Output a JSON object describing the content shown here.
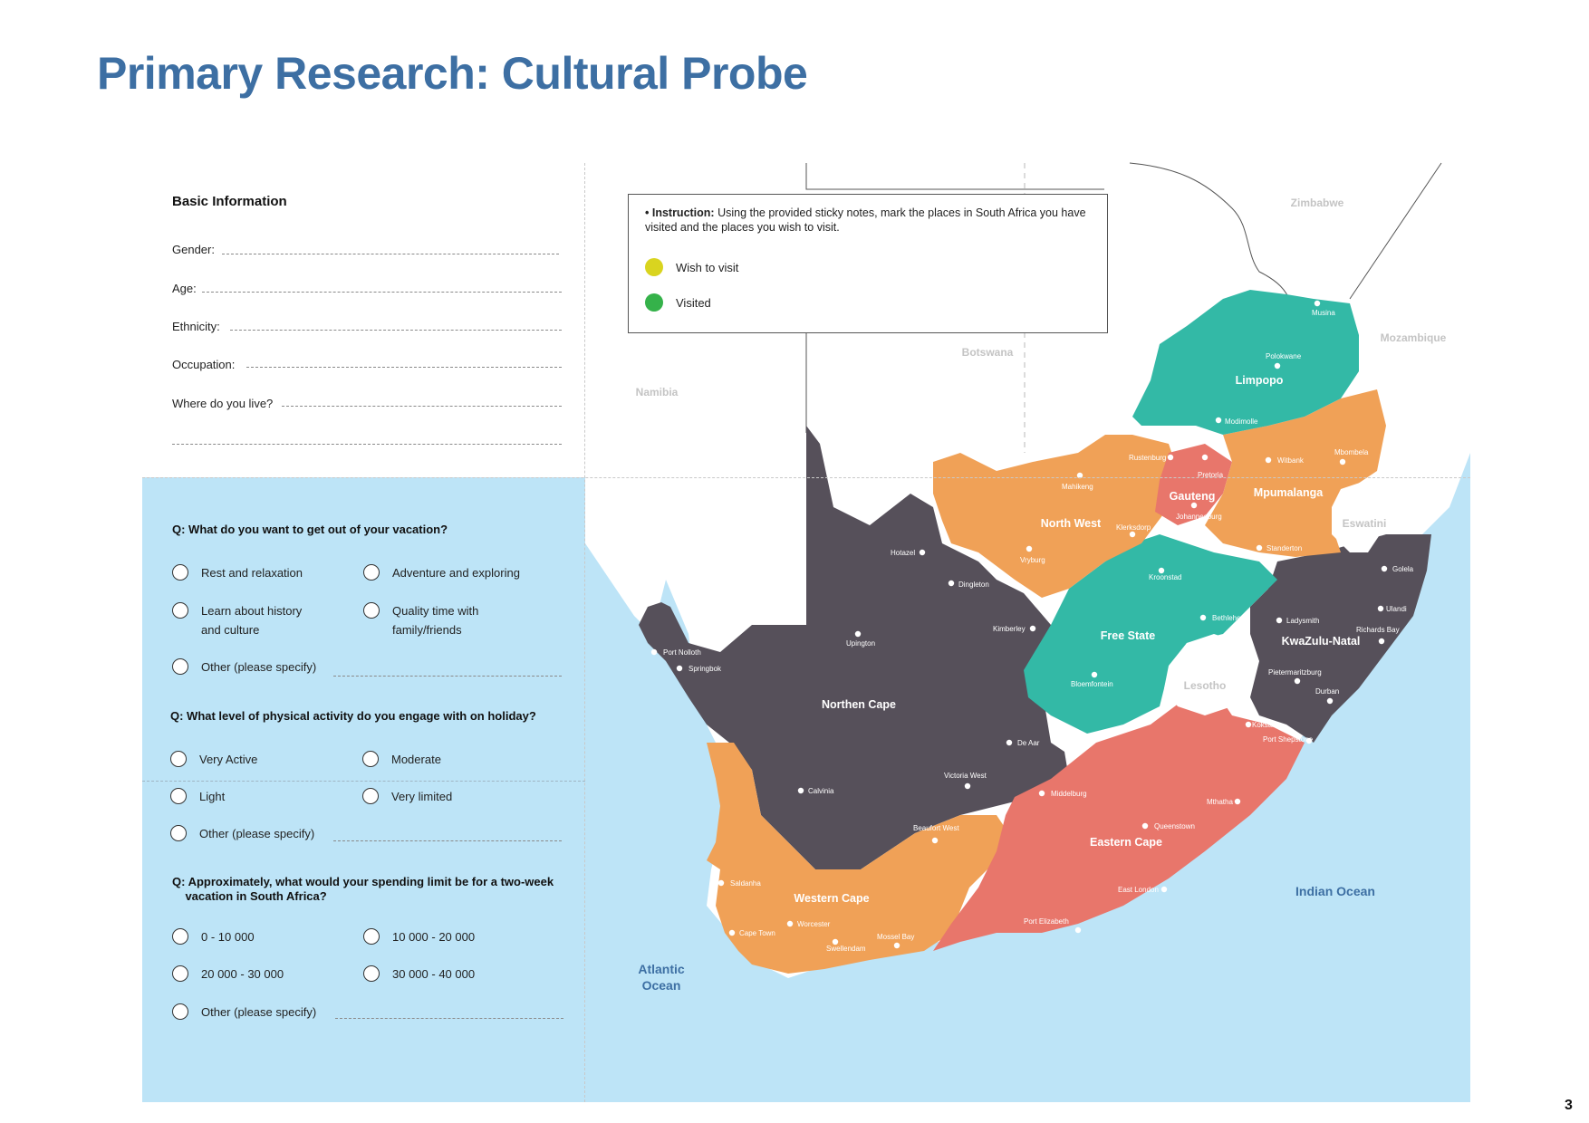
{
  "page_title": "Primary Research: Cultural Probe",
  "page_number": "3",
  "basic_info": {
    "heading": "Basic Information",
    "fields": [
      "Gender:",
      "Age:",
      "Ethnicity:",
      "Occupation:",
      "Where do you live?"
    ]
  },
  "questions": [
    {
      "text": "Q: What do you want to get out of your vacation?",
      "options": [
        "Rest and relaxation",
        "Adventure and exploring",
        "Learn about history\nand culture",
        "Quality time with\nfamily/friends",
        "Other (please specify)"
      ]
    },
    {
      "text": "Q: What level of physical activity do you engage with on holiday?",
      "options": [
        "Very Active",
        "Moderate",
        "Light",
        "Very limited",
        "Other (please specify)"
      ]
    },
    {
      "text": "Q: Approximately, what would your spending limit be for a two-week\n    vacation in South Africa?",
      "options": [
        "0 - 10 000",
        "10 000 - 20 000",
        "20 000 - 30 000",
        "30 000 - 40 000",
        "Other (please specify)"
      ]
    }
  ],
  "instruction": {
    "label": "• Instruction:",
    "text": " Using the provided sticky notes, mark the places in South Africa you have visited and the places you wish to visit.",
    "legend": [
      {
        "label": "Wish to visit",
        "color": "#d9d41f"
      },
      {
        "label": "Visited",
        "color": "#35b24a"
      }
    ]
  },
  "map": {
    "countries": [
      "Zimbabwe",
      "Mozambique",
      "Botswana",
      "Namibia",
      "Eswatini",
      "Lesotho"
    ],
    "oceans": [
      "Atlantic\nOcean",
      "Indian Ocean"
    ],
    "provinces": [
      {
        "name": "Limpopo",
        "color": "#33b9a6"
      },
      {
        "name": "Mpumalanga",
        "color": "#f0a157"
      },
      {
        "name": "Gauteng",
        "color": "#e8766b"
      },
      {
        "name": "North West",
        "color": "#f0a157"
      },
      {
        "name": "Free State",
        "color": "#33b9a6"
      },
      {
        "name": "KwaZulu-Natal",
        "color": "#56505a"
      },
      {
        "name": "Northen Cape",
        "color": "#56505a"
      },
      {
        "name": "Eastern Cape",
        "color": "#e8766b"
      },
      {
        "name": "Western Cape",
        "color": "#f0a157"
      }
    ],
    "towns": [
      "Musina",
      "Polokwane",
      "Modimolle",
      "Mbombela",
      "Witbank",
      "Pretoria",
      "Rustenburg",
      "Mahikeng",
      "Johannesburg",
      "Klerksdorp",
      "Standerton",
      "Vryburg",
      "Hotazel",
      "Dingleton",
      "Kroonstad",
      "Bethlehem",
      "Kimberley",
      "Upington",
      "Port Nolloth",
      "Springbok",
      "Bloemfontein",
      "Golela",
      "Ulandi",
      "Ladysmith",
      "Richards Bay",
      "Pietermaritzburg",
      "Durban",
      "Kokstad",
      "Port Shepstone",
      "De Aar",
      "Victoria West",
      "Calvinia",
      "Middelburg",
      "Mthatha",
      "Queenstown",
      "Beaufort West",
      "Saldanha",
      "East London",
      "Worcester",
      "Cape Town",
      "Mossel Bay",
      "Swellendam",
      "Port Elizabeth"
    ]
  }
}
